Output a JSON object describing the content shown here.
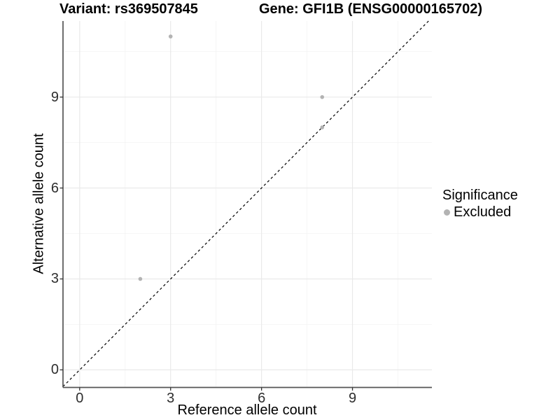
{
  "chart_data": {
    "type": "scatter",
    "titles": [
      "Variant: rs369507845",
      "Gene: GFI1B (ENSG00000165702)"
    ],
    "xlabel": "Reference allele count",
    "ylabel": "Alternative allele count",
    "xlim": [
      -0.55,
      11.62
    ],
    "ylim": [
      -0.58,
      11.51
    ],
    "xticks": [
      0,
      3,
      6,
      9
    ],
    "yticks": [
      0,
      3,
      6,
      9
    ],
    "xminor": [
      1.5,
      4.5,
      7.5,
      10.5
    ],
    "yminor": [
      1.5,
      4.5,
      7.5,
      10.5
    ],
    "grid": "major+minor",
    "reference_line": {
      "type": "identity y=x",
      "style": "dashed",
      "color": "#000000"
    },
    "series": [
      {
        "name": "Excluded",
        "color": "#b3b3b3",
        "points": [
          [
            2,
            3
          ],
          [
            3,
            11
          ],
          [
            8,
            8
          ],
          [
            8,
            9
          ]
        ]
      }
    ],
    "legend": {
      "position": "right",
      "title": "Significance",
      "items": [
        {
          "label": "Excluded",
          "color": "#b3b3b3"
        }
      ]
    }
  },
  "colors": {
    "background": "#ffffff",
    "grid_major": "#e9e9e9",
    "grid_minor": "#f4f4f4",
    "axis_line": "#555555",
    "tick_mark": "#333333",
    "point": "#b3b3b3",
    "identity_line": "#000000"
  }
}
